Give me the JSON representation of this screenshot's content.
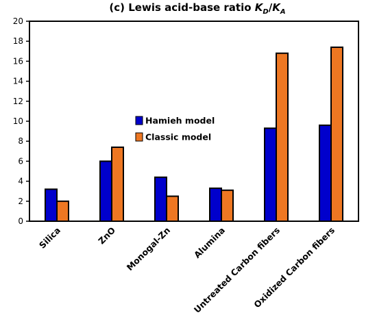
{
  "chart_data": {
    "type": "bar",
    "title": {
      "prefix": "(c) Lewis acid-base ratio ",
      "k1": "K",
      "sub1": "D",
      "slash": "/",
      "k2": "K",
      "sub2": "A"
    },
    "categories": [
      "Silica",
      "ZnO",
      "Monogal-Zn",
      "Alumina",
      "Untreated Carbon fibers",
      "Oxidized Carbon fibers"
    ],
    "series": [
      {
        "name": "Hamieh model",
        "color": "#0000CC",
        "values": [
          3.2,
          6.0,
          4.4,
          3.3,
          9.3,
          9.6
        ]
      },
      {
        "name": "Classic model",
        "color": "#EE7722",
        "values": [
          2.0,
          7.4,
          2.5,
          3.1,
          16.8,
          17.4
        ]
      }
    ],
    "ylim": [
      0,
      20
    ],
    "yticks": [
      "0",
      "2",
      "4",
      "6",
      "8",
      "10",
      "12",
      "14",
      "16",
      "18",
      "20"
    ],
    "legend_position": "center-left",
    "grid": false
  }
}
